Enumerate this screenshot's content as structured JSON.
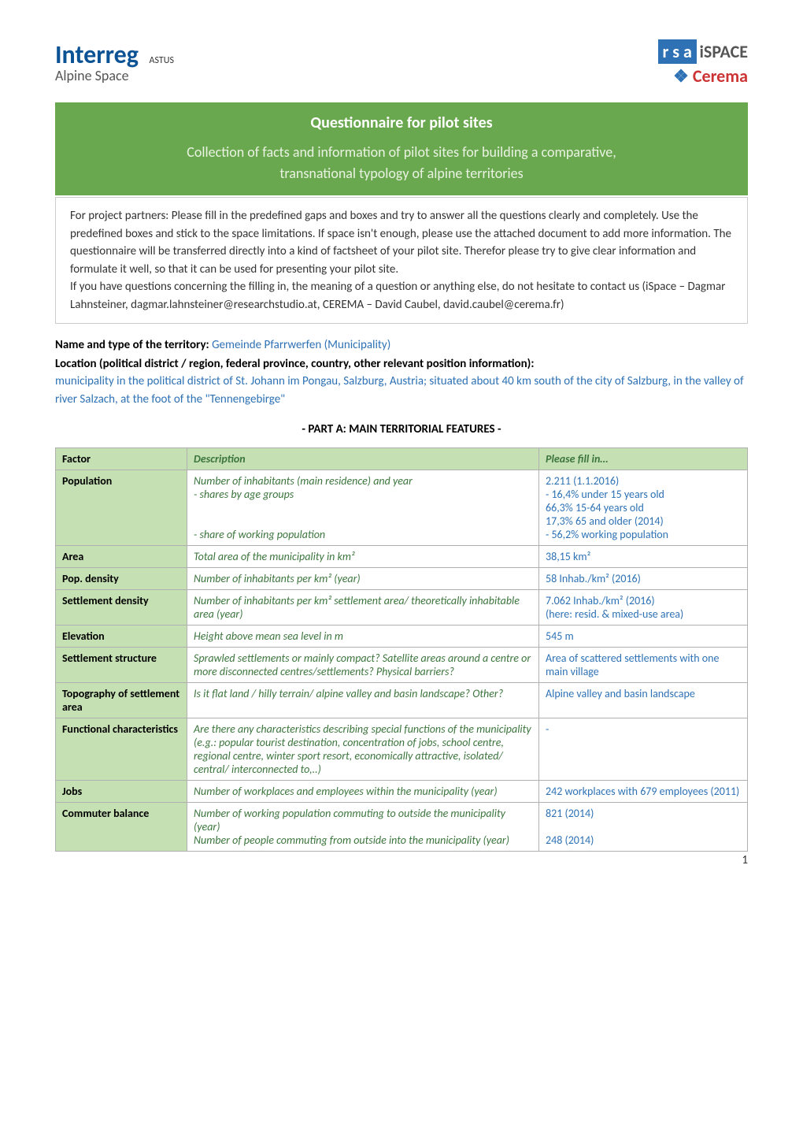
{
  "logos": {
    "interreg": "Interreg",
    "alpine_space": "Alpine Space",
    "astus": "ASTUS",
    "rsa": "r s a",
    "ispace": "iSPACE",
    "cerema": "Cerema"
  },
  "banner": {
    "title": "Questionnaire for pilot sites",
    "subtitle_line1": "Collection of facts and information of pilot sites for building a comparative,",
    "subtitle_line2": "transnational typology of alpine territories"
  },
  "instructions": "For project partners: Please fill in the predefined gaps and boxes and try to answer all the questions clearly and completely. Use the predefined boxes and stick to the space limitations. If space isn't enough, please use the attached document to add more information. The questionnaire will be transferred directly into a kind of factsheet of your pilot site. Therefor please try to give clear information and formulate it well, so that it can be used for presenting your pilot site.\nIf you have questions concerning the filling in, the meaning of a question or anything else, do not hesitate to contact us (iSpace – Dagmar Lahnsteiner, dagmar.lahnsteiner@researchstudio.at, CEREMA – David Caubel, david.caubel@cerema.fr)",
  "name_type": {
    "label": "Name and type of the territory: ",
    "value": "Gemeinde Pfarrwerfen (Municipality)"
  },
  "location": {
    "label": "Location (political district / region, federal province, country, other relevant position information):",
    "value": "municipality in the political district of St. Johann im Pongau, Salzburg, Austria; situated about 40 km south of the city of Salzburg, in the valley of river Salzach, at the foot of the \"Tennengebirge\""
  },
  "part_heading": "- PART A: MAIN TERRITORIAL FEATURES -",
  "table": {
    "headers": {
      "factor": "Factor",
      "description": "Description",
      "fill": "Please fill in…"
    },
    "rows": [
      {
        "factor": "Population",
        "description": "Number of inhabitants (main residence) and year\n- shares by age groups\n\n\n- share of working population",
        "fill": "2.211 (1.1.2016)\n- 16,4% under 15 years old\n  66,3% 15-64 years old\n  17,3% 65 and older (2014)\n- 56,2% working population"
      },
      {
        "factor": "Area",
        "description": "Total area of the municipality in km²",
        "fill": "38,15 km²"
      },
      {
        "factor": "Pop. density",
        "description": "Number of inhabitants per km² (year)",
        "fill": "58 Inhab./km² (2016)"
      },
      {
        "factor": "Settlement density",
        "description": "Number of inhabitants per km² settlement area/ theoretically inhabitable area (year)",
        "fill": "7.062 Inhab./km² (2016)\n(here: resid. & mixed-use area)"
      },
      {
        "factor": "Elevation",
        "description": "Height above mean sea level in m",
        "fill": "545 m"
      },
      {
        "factor": "Settlement structure",
        "description": "Sprawled settlements or mainly compact? Satellite areas around a centre or more disconnected centres/settlements? Physical barriers?",
        "fill": "Area of scattered settlements with one main village"
      },
      {
        "factor": "Topography of settlement area",
        "description": "Is it flat land / hilly terrain/ alpine valley and basin landscape? Other?",
        "fill": "Alpine valley and basin landscape"
      },
      {
        "factor": "Functional characteristics",
        "description": "Are there any characteristics describing special functions of the municipality (e.g.: popular tourist destination, concentration of jobs, school centre, regional centre, winter sport resort, economically attractive, isolated/ central/ interconnected to,..)",
        "fill": "-"
      },
      {
        "factor": "Jobs",
        "description": "Number of workplaces and employees within the municipality (year)",
        "fill": "242 workplaces with 679 employees (2011)"
      },
      {
        "factor": "Commuter balance",
        "description": "Number of working population commuting to outside the municipality (year)\nNumber of people commuting from outside into the municipality (year)",
        "fill": "821 (2014)\n\n248 (2014)"
      }
    ]
  },
  "page_number": "1"
}
